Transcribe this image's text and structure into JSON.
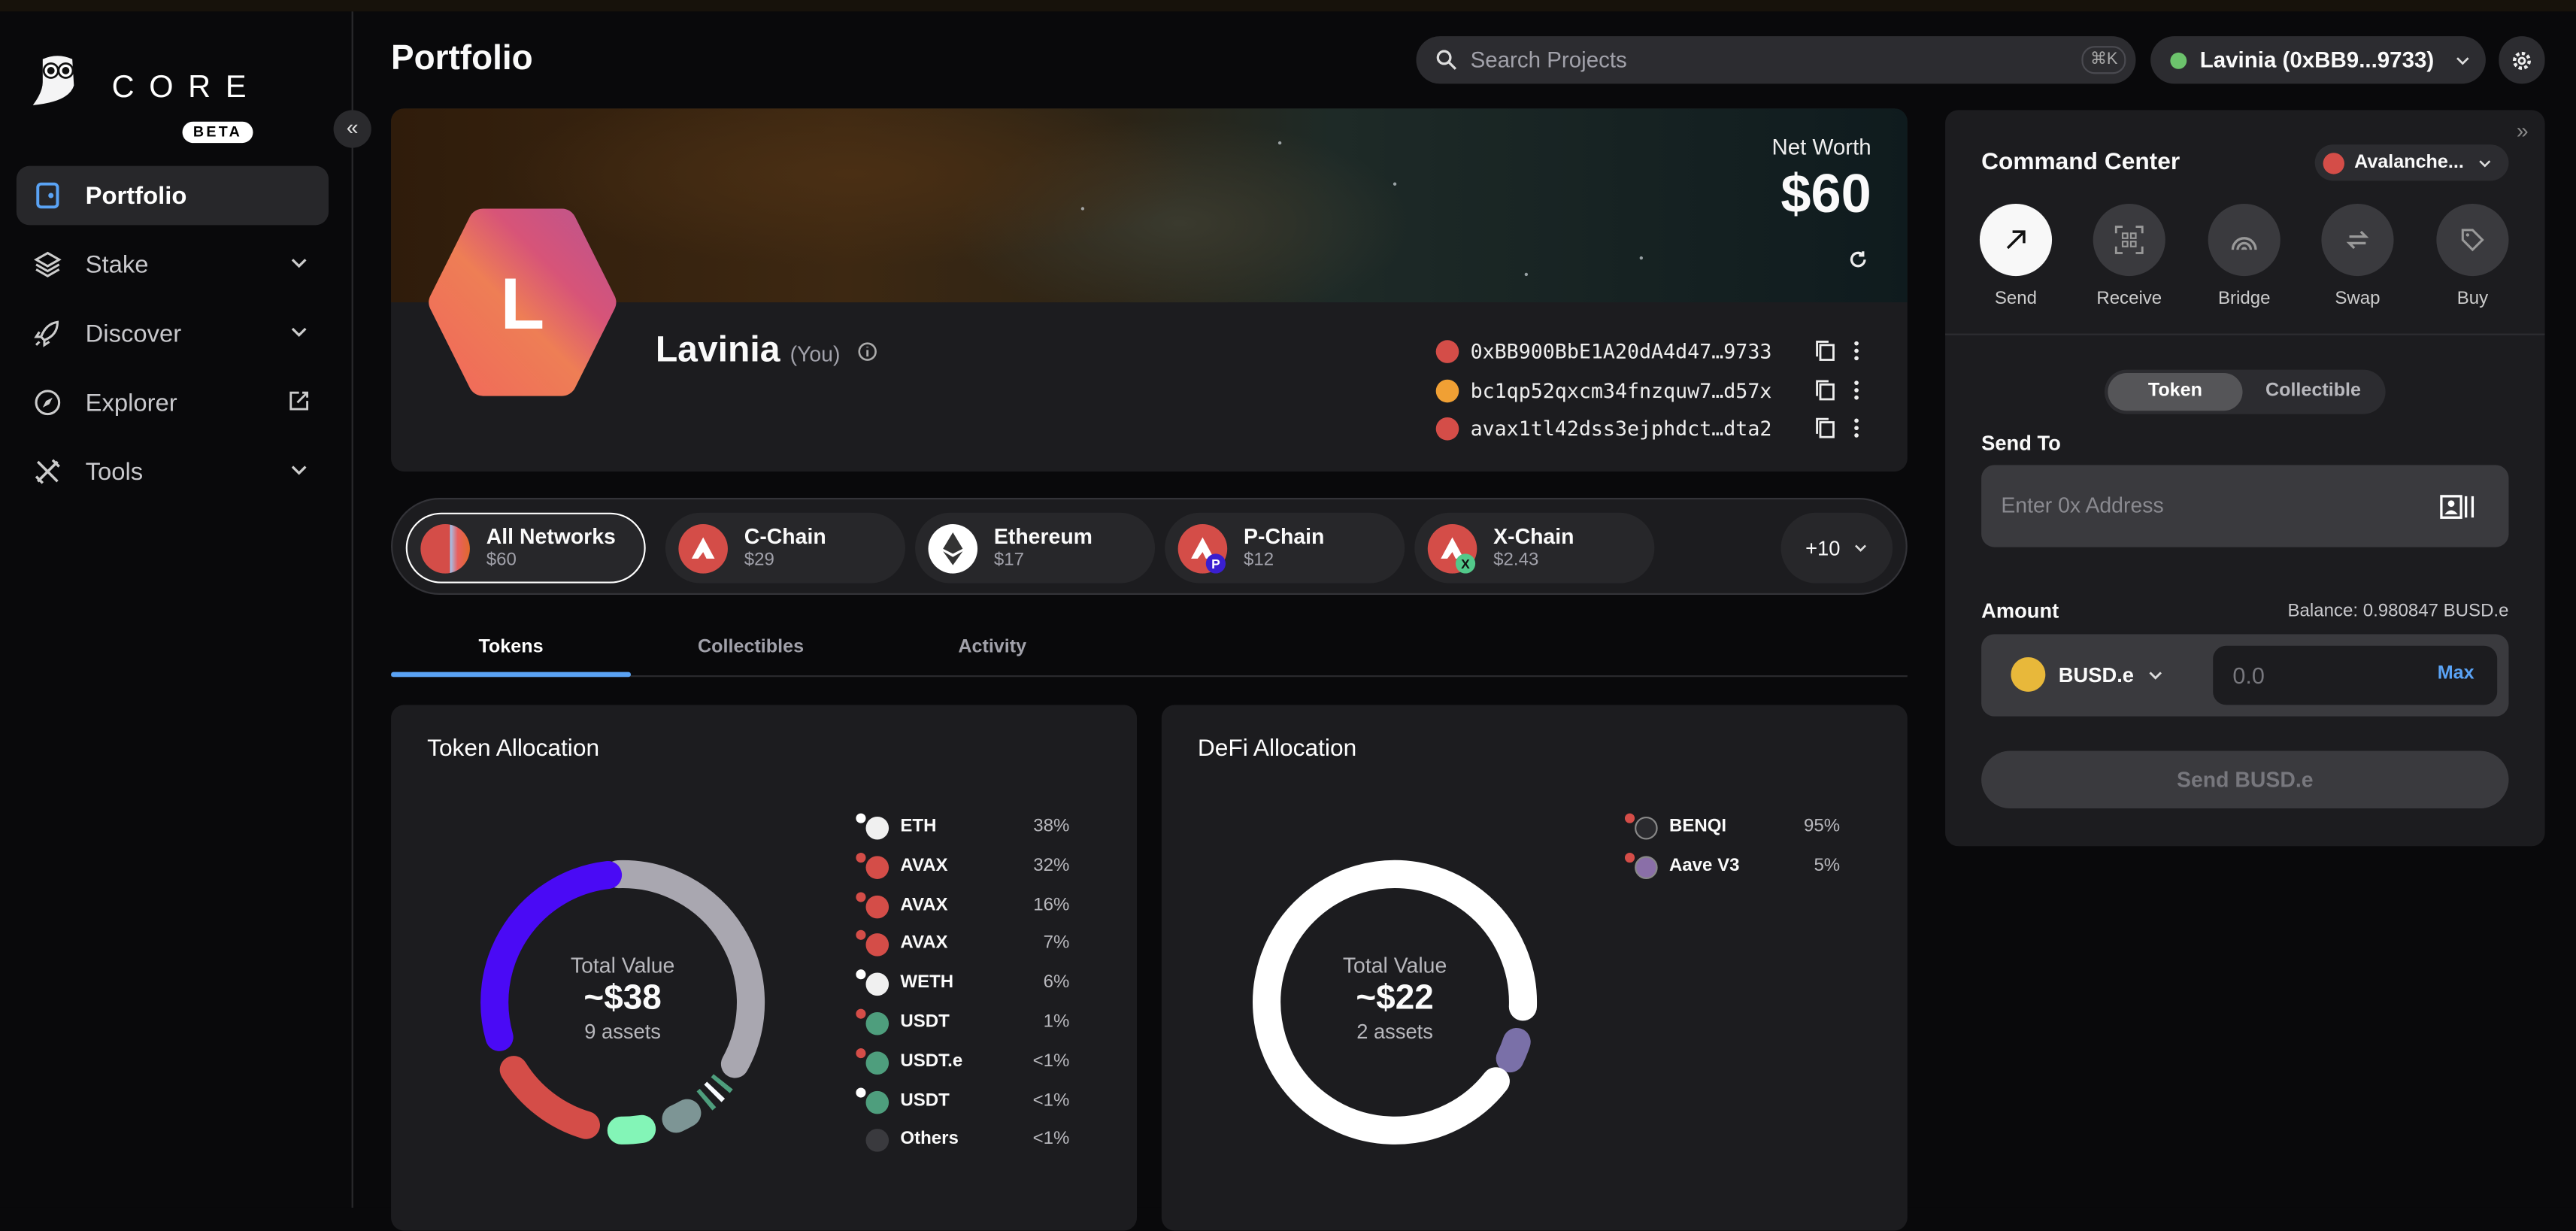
{
  "sidebar": {
    "brand": "CORE",
    "badge": "BETA",
    "items": [
      {
        "label": "Portfolio",
        "icon": "wallet-icon",
        "active": true
      },
      {
        "label": "Stake",
        "icon": "layers-icon"
      },
      {
        "label": "Discover",
        "icon": "rocket-icon"
      },
      {
        "label": "Explorer",
        "icon": "compass-icon"
      },
      {
        "label": "Tools",
        "icon": "tools-icon"
      }
    ]
  },
  "header": {
    "title": "Portfolio",
    "search_placeholder": "Search Projects",
    "search_shortcut": "⌘K",
    "account": "Lavinia (0xBB9...9733)",
    "account_status_color": "#6cc36c"
  },
  "profile": {
    "initial": "L",
    "name": "Lavinia",
    "you": "(You)",
    "net_worth_label": "Net Worth",
    "net_worth": "$60",
    "addresses": [
      {
        "chain": "avalanche",
        "text": "0xBB900BbE1A20dA4d47…9733"
      },
      {
        "chain": "bitcoin",
        "text": "bc1qp52qxcm34fnzquw7…d57x"
      },
      {
        "chain": "avalanche-p",
        "text": "avax1tl42dss3ejphdct…dta2"
      }
    ]
  },
  "networks": {
    "items": [
      {
        "name": "All Networks",
        "value": "$60",
        "selected": true
      },
      {
        "name": "C-Chain",
        "value": "$29"
      },
      {
        "name": "Ethereum",
        "value": "$17"
      },
      {
        "name": "P-Chain",
        "value": "$12"
      },
      {
        "name": "X-Chain",
        "value": "$2.43"
      }
    ],
    "more": "+10"
  },
  "tabs": [
    {
      "label": "Tokens",
      "active": true
    },
    {
      "label": "Collectibles"
    },
    {
      "label": "Activity"
    }
  ],
  "token_allocation": {
    "title": "Token Allocation",
    "center_label": "Total Value",
    "total": "~$38",
    "count": "9 assets",
    "items": [
      {
        "symbol": "ETH",
        "pct_label": "38%",
        "pct": 38,
        "color": "#a9a7b0"
      },
      {
        "symbol": "AVAX",
        "pct_label": "32%",
        "pct": 32,
        "color": "#4a0af5"
      },
      {
        "symbol": "AVAX",
        "pct_label": "16%",
        "pct": 16,
        "color": "#d44d48"
      },
      {
        "symbol": "AVAX",
        "pct_label": "7%",
        "pct": 7,
        "color": "#83f5b7"
      },
      {
        "symbol": "WETH",
        "pct_label": "6%",
        "pct": 6,
        "color": "#7d9595"
      },
      {
        "symbol": "USDT",
        "pct_label": "1%",
        "pct": 1,
        "color": "#4e9e7d"
      },
      {
        "symbol": "USDT.e",
        "pct_label": "<1%",
        "pct": null,
        "color": "#f8fbff"
      },
      {
        "symbol": "USDT",
        "pct_label": "<1%",
        "pct": null,
        "color": "#4e9e7d"
      },
      {
        "symbol": "Others",
        "pct_label": "<1%",
        "pct": null,
        "color": "#3a3a3e"
      }
    ]
  },
  "defi_allocation": {
    "title": "DeFi Allocation",
    "center_label": "Total Value",
    "total": "~$22",
    "count": "2 assets",
    "items": [
      {
        "name": "BENQI",
        "pct_label": "95%",
        "pct": 95,
        "color": "#ffffff"
      },
      {
        "name": "Aave V3",
        "pct_label": "5%",
        "pct": 5,
        "color": "#7a70a8"
      }
    ]
  },
  "command_center": {
    "title": "Command Center",
    "network": "Avalanche...",
    "actions": [
      {
        "label": "Send",
        "icon": "arrow-up-right-icon",
        "active": true
      },
      {
        "label": "Receive",
        "icon": "qr-code-icon"
      },
      {
        "label": "Bridge",
        "icon": "bridge-icon"
      },
      {
        "label": "Swap",
        "icon": "swap-icon"
      },
      {
        "label": "Buy",
        "icon": "tag-icon"
      }
    ],
    "toggle": [
      "Token",
      "Collectible"
    ],
    "send_to_label": "Send To",
    "address_placeholder": "Enter 0x Address",
    "amount_label": "Amount",
    "balance": "Balance: 0.980847 BUSD.e",
    "token": "BUSD.e",
    "amount_placeholder": "0.0",
    "max": "Max",
    "submit": "Send BUSD.e"
  }
}
